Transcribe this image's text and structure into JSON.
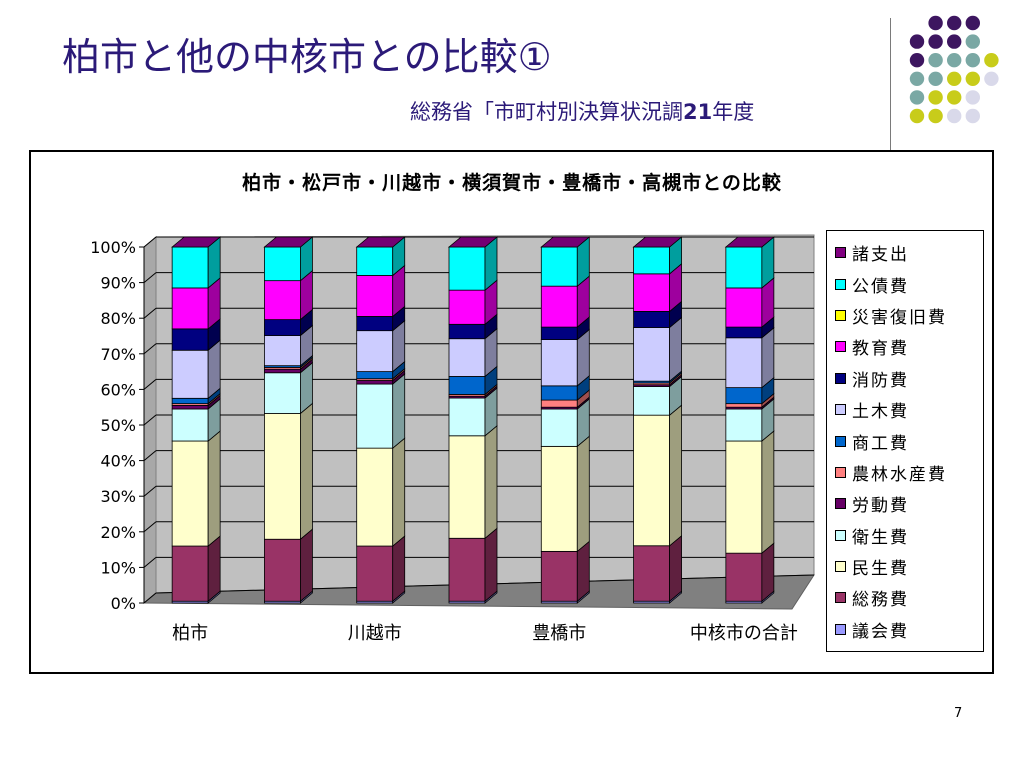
{
  "slide": {
    "title": "柏市と他の中核市との比較①",
    "subtitle_prefix": "総務省「市町村別決算状況調",
    "subtitle_year": "21",
    "subtitle_suffix": "年度",
    "page_number": "7"
  },
  "colors": {
    "title_text": "#2b1a78",
    "dot_purple": "#3d1660",
    "dot_teal": "#7aa8a4",
    "dot_yellow": "#c8cc1a",
    "dot_lavender": "#d9d9ea"
  },
  "chart_data": {
    "type": "bar",
    "stacked": "percent",
    "title": "柏市・松戸市・川越市・横須賀市・豊橋市・高槻市との比較",
    "categories": [
      "柏市",
      "松戸市",
      "川越市",
      "横須賀市",
      "豊橋市",
      "高槻市",
      "中核市の合計"
    ],
    "x_tick_labels_visible": [
      "柏市",
      "川越市",
      "豊橋市",
      "中核市の合計"
    ],
    "y_ticks": [
      "0%",
      "10%",
      "20%",
      "30%",
      "40%",
      "50%",
      "60%",
      "70%",
      "80%",
      "90%",
      "100%"
    ],
    "ylim": [
      0,
      100
    ],
    "grid": true,
    "legend_position": "right",
    "series": [
      {
        "name": "議会費",
        "color": "#9999ff",
        "values": [
          0.5,
          0.5,
          0.5,
          0.5,
          0.5,
          0.5,
          0.5
        ]
      },
      {
        "name": "総務費",
        "color": "#993366",
        "values": [
          15.5,
          17.5,
          15.5,
          17.5,
          14.0,
          15.5,
          13.5
        ]
      },
      {
        "name": "民生費",
        "color": "#ffffcc",
        "values": [
          29.5,
          35.5,
          27.5,
          28.5,
          29.5,
          36.5,
          31.5
        ]
      },
      {
        "name": "衛生費",
        "color": "#ccffff",
        "values": [
          9.0,
          11.5,
          18.0,
          10.5,
          10.5,
          8.0,
          9.0
        ]
      },
      {
        "name": "労動費",
        "color": "#660066",
        "values": [
          1.0,
          1.0,
          1.0,
          0.5,
          0.5,
          0.5,
          0.5
        ]
      },
      {
        "name": "農林水産費",
        "color": "#ff8080",
        "values": [
          0.5,
          0.5,
          0.5,
          0.5,
          2.0,
          0.5,
          1.0
        ]
      },
      {
        "name": "商工費",
        "color": "#0066cc",
        "values": [
          1.5,
          0.5,
          2.0,
          5.0,
          4.0,
          0.5,
          4.5
        ]
      },
      {
        "name": "土木費",
        "color": "#ccccff",
        "values": [
          13.5,
          8.5,
          11.5,
          10.5,
          13.0,
          15.0,
          14.0
        ]
      },
      {
        "name": "消防費",
        "color": "#000080",
        "values": [
          6.0,
          4.5,
          4.0,
          4.0,
          3.5,
          4.5,
          3.0
        ]
      },
      {
        "name": "教育費",
        "color": "#ff00ff",
        "values": [
          11.5,
          11.0,
          11.5,
          9.5,
          11.5,
          10.5,
          11.0
        ]
      },
      {
        "name": "災害復旧費",
        "color": "#ffff00",
        "values": [
          0.0,
          0.0,
          0.0,
          0.0,
          0.0,
          0.0,
          0.0
        ]
      },
      {
        "name": "公債費",
        "color": "#00ffff",
        "values": [
          11.5,
          9.5,
          8.0,
          12.0,
          11.0,
          7.5,
          11.5
        ]
      },
      {
        "name": "諸支出",
        "color": "#800080",
        "values": [
          0.0,
          0.0,
          0.0,
          0.0,
          0.0,
          0.0,
          0.0
        ]
      }
    ]
  },
  "legend": {
    "items": [
      {
        "label": "諸支出",
        "color": "#800080"
      },
      {
        "label": "公債費",
        "color": "#00ffff"
      },
      {
        "label": "災害復旧費",
        "color": "#ffff00"
      },
      {
        "label": "教育費",
        "color": "#ff00ff"
      },
      {
        "label": "消防費",
        "color": "#000080"
      },
      {
        "label": "土木費",
        "color": "#ccccff"
      },
      {
        "label": "商工費",
        "color": "#0066cc"
      },
      {
        "label": "農林水産費",
        "color": "#ff8080"
      },
      {
        "label": "労動費",
        "color": "#660066"
      },
      {
        "label": "衛生費",
        "color": "#ccffff"
      },
      {
        "label": "民生費",
        "color": "#ffffcc"
      },
      {
        "label": "総務費",
        "color": "#993366"
      },
      {
        "label": "議会費",
        "color": "#9999ff"
      }
    ]
  }
}
